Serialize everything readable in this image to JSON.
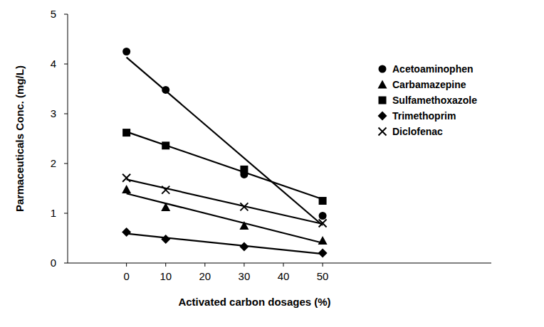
{
  "chart_data": {
    "type": "scatter",
    "x_label": "Activated carbon dosages (%)",
    "y_label": "Parmaceuticals  Conc. (mg/L)",
    "x": [
      0,
      10,
      30,
      50
    ],
    "xlim": [
      -15,
      93
    ],
    "xticks": [
      0,
      10,
      20,
      30,
      40,
      50
    ],
    "ylim": [
      0,
      5
    ],
    "yticks": [
      0,
      1,
      2,
      3,
      4,
      5
    ],
    "grid": false,
    "legend": "top-right",
    "series": [
      {
        "name": "Acetoaminophen",
        "color": "#000000",
        "marker": "circle",
        "line_style": "solid",
        "values": [
          4.25,
          3.48,
          1.78,
          0.95
        ]
      },
      {
        "name": "Carbamazepine",
        "color": "#000000",
        "marker": "triangle",
        "line_style": "solid",
        "values": [
          1.48,
          1.12,
          0.75,
          0.45
        ]
      },
      {
        "name": "Sulfamethoxazole",
        "color": "#000000",
        "marker": "square",
        "line_style": "solid",
        "values": [
          2.62,
          2.36,
          1.88,
          1.25
        ]
      },
      {
        "name": "Trimethoprim",
        "color": "#000000",
        "marker": "diamond",
        "line_style": "solid",
        "values": [
          0.62,
          0.48,
          0.33,
          0.2
        ]
      },
      {
        "name": "Diclofenac",
        "color": "#000000",
        "marker": "x",
        "line_style": "solid",
        "values": [
          1.71,
          1.47,
          1.13,
          0.8
        ]
      }
    ]
  }
}
